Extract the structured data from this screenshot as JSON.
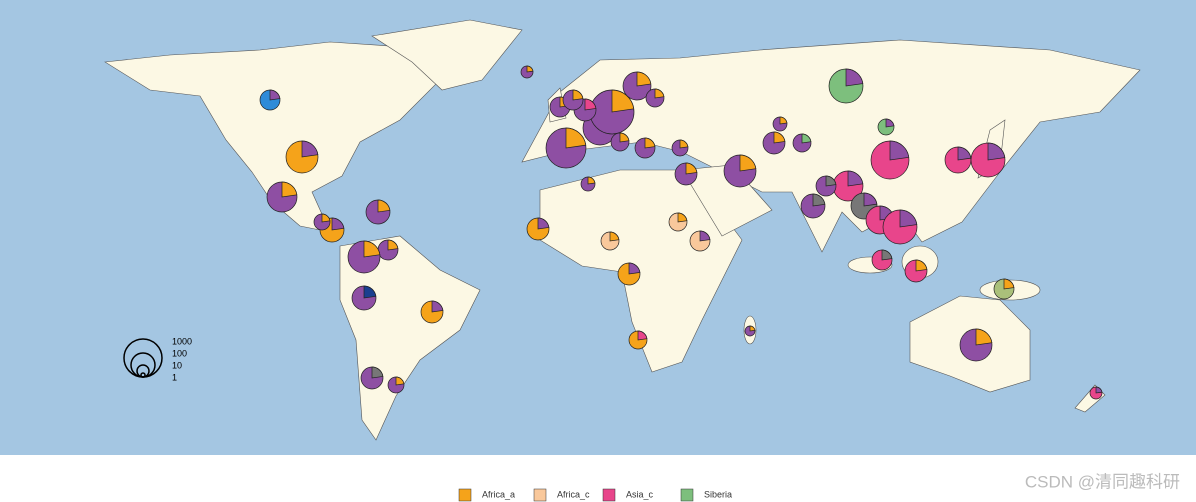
{
  "size_legend": {
    "labels": [
      "1000",
      "100",
      "10",
      "1"
    ]
  },
  "legend": {
    "items": [
      {
        "name": "Africa_a",
        "color": "#f5a31a"
      },
      {
        "name": "Africa_c",
        "color": "#f9c89b"
      },
      {
        "name": "Asia_c",
        "color": "#e8458b"
      },
      {
        "name": "Siberia",
        "color": "#7dbf7d"
      }
    ]
  },
  "watermark": "CSDN @清同趣科研"
}
